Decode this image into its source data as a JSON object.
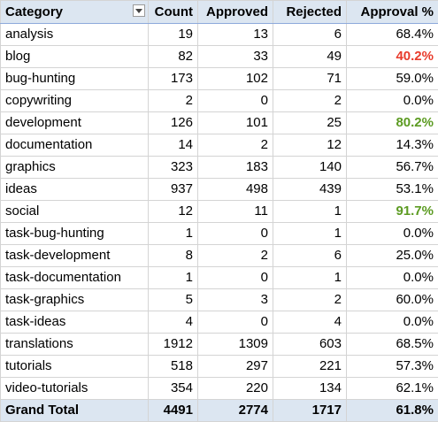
{
  "headers": {
    "category": "Category",
    "count": "Count",
    "approved": "Approved",
    "rejected": "Rejected",
    "approval_pct": "Approval %"
  },
  "rows": [
    {
      "category": "analysis",
      "count": "19",
      "approved": "13",
      "rejected": "6",
      "approval_pct": "68.4%",
      "highlight": ""
    },
    {
      "category": "blog",
      "count": "82",
      "approved": "33",
      "rejected": "49",
      "approval_pct": "40.2%",
      "highlight": "low"
    },
    {
      "category": "bug-hunting",
      "count": "173",
      "approved": "102",
      "rejected": "71",
      "approval_pct": "59.0%",
      "highlight": ""
    },
    {
      "category": "copywriting",
      "count": "2",
      "approved": "0",
      "rejected": "2",
      "approval_pct": "0.0%",
      "highlight": ""
    },
    {
      "category": "development",
      "count": "126",
      "approved": "101",
      "rejected": "25",
      "approval_pct": "80.2%",
      "highlight": "high"
    },
    {
      "category": "documentation",
      "count": "14",
      "approved": "2",
      "rejected": "12",
      "approval_pct": "14.3%",
      "highlight": ""
    },
    {
      "category": "graphics",
      "count": "323",
      "approved": "183",
      "rejected": "140",
      "approval_pct": "56.7%",
      "highlight": ""
    },
    {
      "category": "ideas",
      "count": "937",
      "approved": "498",
      "rejected": "439",
      "approval_pct": "53.1%",
      "highlight": ""
    },
    {
      "category": "social",
      "count": "12",
      "approved": "11",
      "rejected": "1",
      "approval_pct": "91.7%",
      "highlight": "high"
    },
    {
      "category": "task-bug-hunting",
      "count": "1",
      "approved": "0",
      "rejected": "1",
      "approval_pct": "0.0%",
      "highlight": ""
    },
    {
      "category": "task-development",
      "count": "8",
      "approved": "2",
      "rejected": "6",
      "approval_pct": "25.0%",
      "highlight": ""
    },
    {
      "category": "task-documentation",
      "count": "1",
      "approved": "0",
      "rejected": "1",
      "approval_pct": "0.0%",
      "highlight": ""
    },
    {
      "category": "task-graphics",
      "count": "5",
      "approved": "3",
      "rejected": "2",
      "approval_pct": "60.0%",
      "highlight": ""
    },
    {
      "category": "task-ideas",
      "count": "4",
      "approved": "0",
      "rejected": "4",
      "approval_pct": "0.0%",
      "highlight": ""
    },
    {
      "category": "translations",
      "count": "1912",
      "approved": "1309",
      "rejected": "603",
      "approval_pct": "68.5%",
      "highlight": ""
    },
    {
      "category": "tutorials",
      "count": "518",
      "approved": "297",
      "rejected": "221",
      "approval_pct": "57.3%",
      "highlight": ""
    },
    {
      "category": "video-tutorials",
      "count": "354",
      "approved": "220",
      "rejected": "134",
      "approval_pct": "62.1%",
      "highlight": ""
    }
  ],
  "total": {
    "label": "Grand Total",
    "count": "4491",
    "approved": "2774",
    "rejected": "1717",
    "approval_pct": "61.8%"
  },
  "colors": {
    "header_bg": "#dce6f1",
    "low_pct": "#e83b2b",
    "high_pct": "#5c9b22",
    "grid": "#d4d4d4"
  },
  "icons": {
    "filter": "chevron-down-icon"
  }
}
